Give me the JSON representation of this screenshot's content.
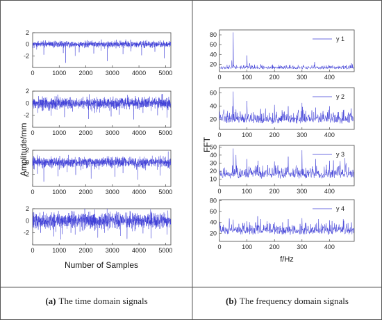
{
  "figure": {
    "caption_left": {
      "label": "(a)",
      "text": "The time domain signals"
    },
    "caption_right": {
      "label": "(b)",
      "text": "The frequency domain signals"
    }
  },
  "chart_data": [
    {
      "type": "line",
      "panel": "time-domain",
      "ylabel": "Amplitude/mm",
      "xlabel": "Number of Samples",
      "xlim": [
        0,
        5200
      ],
      "ylim": [
        -4,
        2
      ],
      "x_ticks": [
        0,
        1000,
        2000,
        3000,
        4000,
        5000
      ],
      "y_ticks": [
        2,
        0,
        -2
      ],
      "color": "#3b3bd6",
      "note_data": "dense noise-like signals; values approximate",
      "series": [
        {
          "n": 5200,
          "noise_std": 0.25,
          "spikes": [
            [
              150,
              -0.9
            ],
            [
              420,
              -1.8
            ],
            [
              610,
              0.6
            ],
            [
              1150,
              -1.5
            ],
            [
              1240,
              -3.2
            ],
            [
              1600,
              -2.0
            ],
            [
              1750,
              -1.4
            ],
            [
              2050,
              0.7
            ],
            [
              2300,
              -1.6
            ],
            [
              2580,
              -1.1
            ],
            [
              2810,
              -2.9
            ],
            [
              3150,
              0.8
            ],
            [
              3400,
              -1.7
            ],
            [
              3700,
              -1.2
            ],
            [
              4100,
              -1.9
            ],
            [
              4350,
              0.5
            ],
            [
              4600,
              -1.3
            ],
            [
              4950,
              -2.4
            ]
          ]
        },
        {
          "n": 5200,
          "noise_std": 0.45,
          "spikes": [
            [
              200,
              -1.6
            ],
            [
              480,
              0.9
            ],
            [
              700,
              -2.1
            ],
            [
              950,
              1.0
            ],
            [
              1200,
              -2.3
            ],
            [
              1500,
              -1.4
            ],
            [
              1850,
              0.8
            ],
            [
              2100,
              -2.6
            ],
            [
              2400,
              -1.5
            ],
            [
              2700,
              1.0
            ],
            [
              2950,
              -2.2
            ],
            [
              3250,
              -1.9
            ],
            [
              3500,
              0.9
            ],
            [
              3800,
              -2.7
            ],
            [
              4150,
              -1.6
            ],
            [
              4400,
              1.1
            ],
            [
              4700,
              -2.0
            ],
            [
              5050,
              -2.4
            ]
          ]
        },
        {
          "n": 5200,
          "noise_std": 0.4,
          "spikes": [
            [
              180,
              -1.9
            ],
            [
              420,
              -3.2
            ],
            [
              700,
              1.0
            ],
            [
              950,
              -2.3
            ],
            [
              1300,
              -1.6
            ],
            [
              1620,
              -2.1
            ],
            [
              1950,
              0.9
            ],
            [
              2200,
              -2.7
            ],
            [
              2500,
              -1.2
            ],
            [
              2800,
              1.0
            ],
            [
              3100,
              -2.4
            ],
            [
              3400,
              -1.8
            ],
            [
              3650,
              0.9
            ],
            [
              3950,
              -2.9
            ],
            [
              4250,
              -1.3
            ],
            [
              4500,
              1.1
            ],
            [
              4800,
              -2.2
            ],
            [
              5100,
              1.8
            ]
          ]
        },
        {
          "n": 5200,
          "noise_std": 0.6,
          "spikes": [
            [
              300,
              -2.0
            ],
            [
              520,
              1.2
            ],
            [
              800,
              -2.6
            ],
            [
              1050,
              -3.1
            ],
            [
              1350,
              1.3
            ],
            [
              1600,
              -2.3
            ],
            [
              1900,
              -1.7
            ],
            [
              2150,
              1.5
            ],
            [
              2450,
              -2.8
            ],
            [
              2700,
              -2.0
            ],
            [
              3000,
              1.2
            ],
            [
              3300,
              -2.5
            ],
            [
              3550,
              -3.0
            ],
            [
              3850,
              1.3
            ],
            [
              4150,
              -2.1
            ],
            [
              4450,
              -2.9
            ],
            [
              4750,
              1.0
            ],
            [
              5050,
              -2.3
            ]
          ]
        }
      ]
    },
    {
      "type": "line",
      "panel": "frequency-domain",
      "ylabel": "FFT",
      "xlabel": "f/Hz",
      "xlim": [
        0,
        490
      ],
      "x_ticks": [
        0,
        100,
        200,
        300,
        400
      ],
      "color": "#3b3bd6",
      "note_data": "noisy spectra; values approximate",
      "series": [
        {
          "name": "y 1",
          "ylim": [
            5,
            90
          ],
          "y_ticks": [
            80,
            60,
            40,
            20
          ],
          "base": 11,
          "amp": 5,
          "peaks": [
            [
              50,
              85
            ],
            [
              45,
              28
            ],
            [
              100,
              38
            ],
            [
              110,
              22
            ],
            [
              150,
              20
            ],
            [
              300,
              16
            ],
            [
              460,
              18
            ],
            [
              480,
              22
            ]
          ]
        },
        {
          "name": "y 2",
          "ylim": [
            5,
            68
          ],
          "y_ticks": [
            60,
            40,
            20
          ],
          "base": 16,
          "amp": 12,
          "peaks": [
            [
              50,
              62
            ],
            [
              48,
              40
            ],
            [
              60,
              35
            ],
            [
              100,
              48
            ],
            [
              150,
              36
            ],
            [
              200,
              42
            ],
            [
              250,
              40
            ],
            [
              300,
              45
            ],
            [
              350,
              38
            ],
            [
              400,
              40
            ],
            [
              450,
              34
            ]
          ]
        },
        {
          "name": "y 3",
          "ylim": [
            2,
            52
          ],
          "y_ticks": [
            50,
            40,
            30,
            20,
            10
          ],
          "base": 13,
          "amp": 10,
          "peaks": [
            [
              50,
              48
            ],
            [
              60,
              40
            ],
            [
              100,
              35
            ],
            [
              140,
              33
            ],
            [
              200,
              32
            ],
            [
              250,
              38
            ],
            [
              300,
              46
            ],
            [
              350,
              35
            ],
            [
              400,
              33
            ],
            [
              460,
              30
            ]
          ]
        },
        {
          "name": "y 4",
          "ylim": [
            5,
            82
          ],
          "y_ticks": [
            80,
            60,
            40,
            20
          ],
          "base": 20,
          "amp": 14,
          "peaks": [
            [
              50,
              45
            ],
            [
              100,
              42
            ],
            [
              150,
              46
            ],
            [
              200,
              40
            ],
            [
              250,
              46
            ],
            [
              300,
              48
            ],
            [
              360,
              46
            ],
            [
              400,
              44
            ],
            [
              450,
              46
            ],
            [
              480,
              40
            ]
          ]
        }
      ]
    }
  ]
}
